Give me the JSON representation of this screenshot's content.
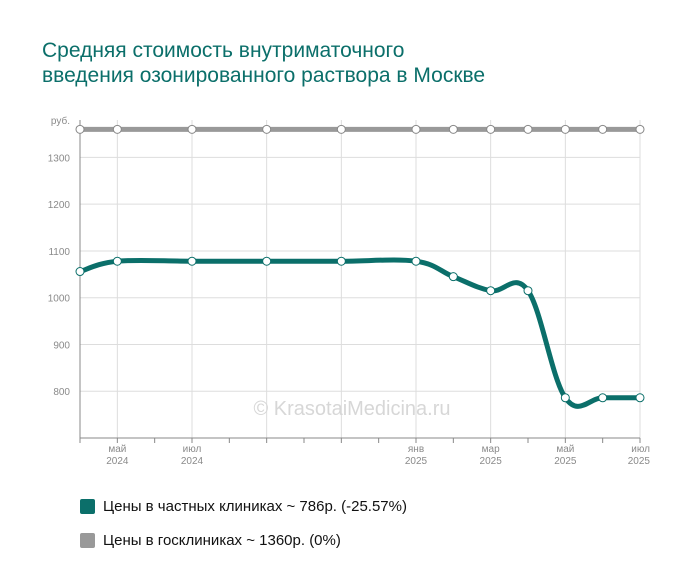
{
  "title": {
    "line1": "Средняя стоимость внутриматочного",
    "line2": "введения озонированного раствора в Москве"
  },
  "watermark": "© KrasotaiMedicina.ru",
  "legend": [
    {
      "label": "Цены в частных клиниках ~ 786р. (-25.57%)",
      "color": "#0b6f6a"
    },
    {
      "label": "Цены в госклиниках ~ 1360р. (0%)",
      "color": "#999999"
    }
  ],
  "chart_data": {
    "type": "line",
    "unit_label": "руб.",
    "ylim": [
      700,
      1380
    ],
    "yticks": [
      800,
      900,
      1000,
      1100,
      1200,
      1300
    ],
    "x": [
      "2024-04",
      "2024-05",
      "2024-06",
      "2024-07",
      "2024-08",
      "2024-09",
      "2024-10",
      "2024-11",
      "2024-12",
      "2025-01",
      "2025-02",
      "2025-03",
      "2025-04",
      "2025-05",
      "2025-06",
      "2025-07"
    ],
    "xtick_labels": [
      {
        "month": "май",
        "year": "2024"
      },
      {
        "month": "июл",
        "year": "2024"
      },
      {
        "month": "янв",
        "year": "2025"
      },
      {
        "month": "мар",
        "year": "2025"
      },
      {
        "month": "май",
        "year": "2025"
      },
      {
        "month": "июл",
        "year": "2025"
      }
    ],
    "grid": true,
    "legend_position": "bottom",
    "series": [
      {
        "name": "Цены в частных клиниках",
        "color": "#0b6f6a",
        "x": [
          "2024-04",
          "2024-05",
          "2024-07",
          "2024-09",
          "2024-11",
          "2025-01",
          "2025-02",
          "2025-03",
          "2025-04",
          "2025-05",
          "2025-06",
          "2025-07"
        ],
        "values": [
          1056,
          1078,
          1078,
          1078,
          1078,
          1078,
          1045,
          1015,
          1015,
          786,
          786,
          786
        ]
      },
      {
        "name": "Цены в госклиниках",
        "color": "#999999",
        "x": [
          "2024-04",
          "2024-05",
          "2024-07",
          "2024-09",
          "2024-11",
          "2025-01",
          "2025-02",
          "2025-03",
          "2025-04",
          "2025-05",
          "2025-06",
          "2025-07"
        ],
        "values": [
          1360,
          1360,
          1360,
          1360,
          1360,
          1360,
          1360,
          1360,
          1360,
          1360,
          1360,
          1360
        ]
      }
    ]
  }
}
